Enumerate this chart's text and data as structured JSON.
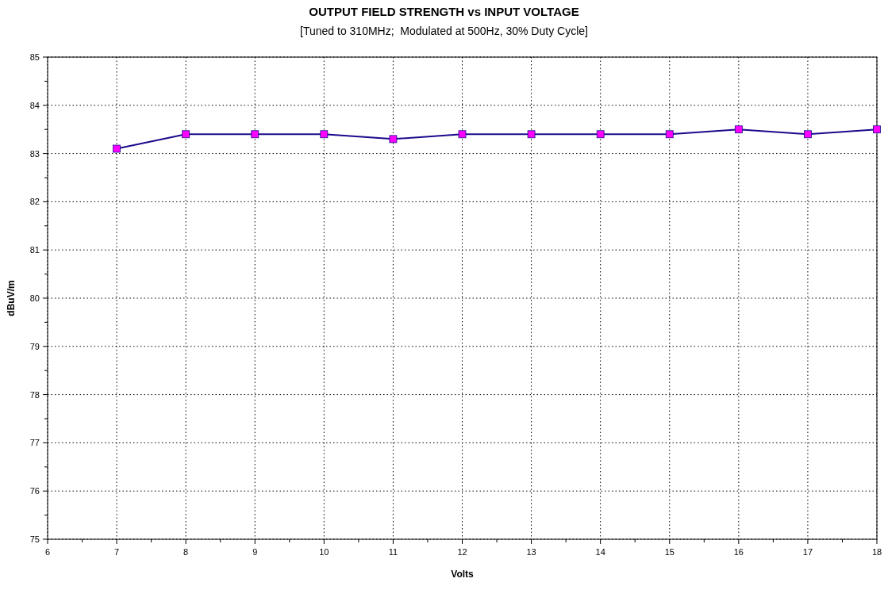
{
  "chart_data": {
    "type": "line",
    "title": "OUTPUT FIELD STRENGTH vs INPUT VOLTAGE",
    "subtitle": "[Tuned to 310MHz;  Modulated at 500Hz, 30% Duty Cycle]",
    "xlabel": "Volts",
    "ylabel": "dBuV/m",
    "x": [
      7,
      8,
      9,
      10,
      11,
      12,
      13,
      14,
      15,
      16,
      17,
      18
    ],
    "series": [
      {
        "color": "#1a0a8c",
        "values": [
          83.1,
          83.4,
          83.4,
          83.4,
          83.3,
          83.4,
          83.4,
          83.4,
          83.4,
          83.5,
          83.4,
          83.5
        ]
      }
    ],
    "xlim": [
      6,
      18
    ],
    "ylim": [
      75,
      85
    ],
    "xticks": [
      6,
      {
        "value": 6.5,
        "label": null
      },
      7,
      {
        "value": 7.5,
        "label": null
      },
      8,
      {
        "value": 8.5,
        "label": null
      },
      9,
      {
        "value": 9.5,
        "label": null
      },
      10,
      {
        "value": 10.5,
        "label": null
      },
      11,
      {
        "value": 11.5,
        "label": null
      },
      12,
      {
        "value": 12.5,
        "label": null
      },
      13,
      {
        "value": 13.5,
        "label": null
      },
      14,
      {
        "value": 14.5,
        "label": null
      },
      15,
      {
        "value": 15.5,
        "label": null
      },
      16,
      {
        "value": 16.5,
        "label": null
      },
      17,
      {
        "value": 17.5,
        "label": null
      },
      18
    ],
    "yticks": [
      75,
      {
        "value": 75.5,
        "label": null
      },
      76,
      {
        "value": 76.5,
        "label": null
      },
      77,
      {
        "value": 77.5,
        "label": null
      },
      78,
      {
        "value": 78.5,
        "label": null
      },
      79,
      {
        "value": 79.5,
        "label": null
      },
      80,
      {
        "value": 80.5,
        "label": null
      },
      81,
      {
        "value": 81.5,
        "label": null
      },
      82,
      {
        "value": 82.5,
        "label": null
      },
      83,
      {
        "value": 83.5,
        "label": null
      },
      84,
      {
        "value": 84.5,
        "label": null
      },
      85
    ],
    "grid": true,
    "marker": "square",
    "line_style": "solid"
  }
}
